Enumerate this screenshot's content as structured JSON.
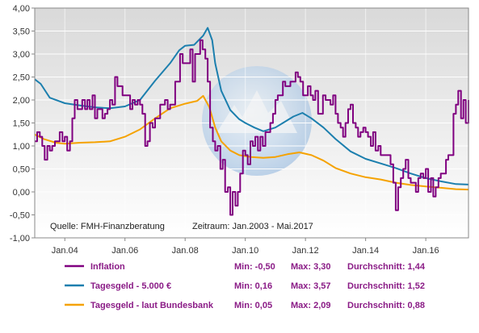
{
  "chart_data": {
    "type": "line",
    "source_note": "Quelle: FMH-Finanzberatung",
    "period_note": "Zeitraum: Jan.2003 - Mai.2017",
    "ylim": [
      -1.0,
      4.0
    ],
    "yticks": [
      "-1,00",
      "-0,50",
      "0,00",
      "0,50",
      "1,00",
      "1,50",
      "2,00",
      "2,50",
      "3,00",
      "3,50",
      "4,00"
    ],
    "xtick_labels": [
      "Jan.04",
      "Jan.06",
      "Jan.08",
      "Jan.10",
      "Jan.12",
      "Jan.14",
      "Jan.16"
    ],
    "xtick_years": [
      2004,
      2006,
      2008,
      2010,
      2012,
      2014,
      2016
    ],
    "x_range": [
      2003.0,
      2017.42
    ],
    "grid": true,
    "legend_position": "bottom",
    "series": [
      {
        "name": "Inflation",
        "color": "#800080",
        "stats": {
          "min": "Min: -0,50",
          "max": "Max: 3,30",
          "avg": "Durchschnitt: 1,44"
        },
        "step": true,
        "points": [
          [
            2003.0,
            1.1
          ],
          [
            2003.08,
            1.3
          ],
          [
            2003.17,
            1.2
          ],
          [
            2003.25,
            1.0
          ],
          [
            2003.33,
            0.7
          ],
          [
            2003.42,
            1.0
          ],
          [
            2003.5,
            0.9
          ],
          [
            2003.58,
            1.0
          ],
          [
            2003.67,
            1.1
          ],
          [
            2003.75,
            1.1
          ],
          [
            2003.83,
            1.3
          ],
          [
            2003.92,
            1.1
          ],
          [
            2004.0,
            1.2
          ],
          [
            2004.08,
            0.9
          ],
          [
            2004.17,
            1.1
          ],
          [
            2004.25,
            1.6
          ],
          [
            2004.33,
            2.0
          ],
          [
            2004.42,
            1.8
          ],
          [
            2004.5,
            1.8
          ],
          [
            2004.58,
            2.0
          ],
          [
            2004.67,
            1.8
          ],
          [
            2004.75,
            2.0
          ],
          [
            2004.83,
            1.8
          ],
          [
            2004.92,
            2.1
          ],
          [
            2005.0,
            1.6
          ],
          [
            2005.08,
            1.8
          ],
          [
            2005.17,
            1.8
          ],
          [
            2005.25,
            1.6
          ],
          [
            2005.33,
            1.7
          ],
          [
            2005.42,
            1.8
          ],
          [
            2005.5,
            2.0
          ],
          [
            2005.58,
            1.9
          ],
          [
            2005.67,
            2.5
          ],
          [
            2005.75,
            2.3
          ],
          [
            2005.83,
            2.3
          ],
          [
            2005.92,
            2.1
          ],
          [
            2006.0,
            2.1
          ],
          [
            2006.08,
            2.1
          ],
          [
            2006.17,
            1.8
          ],
          [
            2006.25,
            2.0
          ],
          [
            2006.33,
            1.9
          ],
          [
            2006.42,
            2.0
          ],
          [
            2006.5,
            1.9
          ],
          [
            2006.58,
            1.7
          ],
          [
            2006.67,
            1.0
          ],
          [
            2006.75,
            1.1
          ],
          [
            2006.83,
            1.5
          ],
          [
            2006.92,
            1.4
          ],
          [
            2007.0,
            1.6
          ],
          [
            2007.08,
            1.6
          ],
          [
            2007.17,
            1.9
          ],
          [
            2007.25,
            1.9
          ],
          [
            2007.33,
            2.0
          ],
          [
            2007.42,
            1.8
          ],
          [
            2007.5,
            1.9
          ],
          [
            2007.58,
            1.9
          ],
          [
            2007.67,
            2.4
          ],
          [
            2007.75,
            2.4
          ],
          [
            2007.83,
            3.0
          ],
          [
            2007.92,
            2.8
          ],
          [
            2008.0,
            2.8
          ],
          [
            2008.08,
            2.8
          ],
          [
            2008.17,
            3.1
          ],
          [
            2008.25,
            2.4
          ],
          [
            2008.33,
            3.0
          ],
          [
            2008.42,
            3.0
          ],
          [
            2008.5,
            3.3
          ],
          [
            2008.58,
            3.1
          ],
          [
            2008.67,
            2.9
          ],
          [
            2008.75,
            2.4
          ],
          [
            2008.83,
            1.4
          ],
          [
            2008.92,
            1.1
          ],
          [
            2009.0,
            0.9
          ],
          [
            2009.08,
            1.0
          ],
          [
            2009.17,
            0.5
          ],
          [
            2009.25,
            0.7
          ],
          [
            2009.33,
            0.0
          ],
          [
            2009.42,
            0.1
          ],
          [
            2009.5,
            -0.5
          ],
          [
            2009.58,
            0.0
          ],
          [
            2009.67,
            -0.3
          ],
          [
            2009.75,
            0.0
          ],
          [
            2009.83,
            0.4
          ],
          [
            2009.92,
            0.9
          ],
          [
            2010.0,
            0.8
          ],
          [
            2010.08,
            0.6
          ],
          [
            2010.17,
            1.1
          ],
          [
            2010.25,
            1.0
          ],
          [
            2010.33,
            1.2
          ],
          [
            2010.42,
            0.9
          ],
          [
            2010.5,
            1.2
          ],
          [
            2010.58,
            1.0
          ],
          [
            2010.67,
            1.3
          ],
          [
            2010.75,
            1.3
          ],
          [
            2010.83,
            1.5
          ],
          [
            2010.92,
            1.7
          ],
          [
            2011.0,
            2.0
          ],
          [
            2011.08,
            2.1
          ],
          [
            2011.17,
            2.1
          ],
          [
            2011.25,
            2.4
          ],
          [
            2011.33,
            2.3
          ],
          [
            2011.42,
            2.3
          ],
          [
            2011.5,
            2.4
          ],
          [
            2011.58,
            2.4
          ],
          [
            2011.67,
            2.6
          ],
          [
            2011.75,
            2.5
          ],
          [
            2011.83,
            2.4
          ],
          [
            2011.92,
            2.1
          ],
          [
            2012.0,
            2.1
          ],
          [
            2012.08,
            2.3
          ],
          [
            2012.17,
            2.1
          ],
          [
            2012.25,
            2.0
          ],
          [
            2012.33,
            2.2
          ],
          [
            2012.42,
            1.7
          ],
          [
            2012.5,
            1.7
          ],
          [
            2012.58,
            2.1
          ],
          [
            2012.67,
            2.0
          ],
          [
            2012.75,
            2.0
          ],
          [
            2012.83,
            1.9
          ],
          [
            2012.92,
            2.1
          ],
          [
            2013.0,
            1.7
          ],
          [
            2013.08,
            1.5
          ],
          [
            2013.17,
            1.4
          ],
          [
            2013.25,
            1.2
          ],
          [
            2013.33,
            1.5
          ],
          [
            2013.42,
            1.8
          ],
          [
            2013.5,
            1.9
          ],
          [
            2013.58,
            1.5
          ],
          [
            2013.67,
            1.4
          ],
          [
            2013.75,
            1.2
          ],
          [
            2013.83,
            1.3
          ],
          [
            2013.92,
            1.4
          ],
          [
            2014.0,
            1.3
          ],
          [
            2014.08,
            1.2
          ],
          [
            2014.17,
            1.0
          ],
          [
            2014.25,
            1.3
          ],
          [
            2014.33,
            0.9
          ],
          [
            2014.42,
            1.0
          ],
          [
            2014.5,
            0.8
          ],
          [
            2014.58,
            0.8
          ],
          [
            2014.67,
            0.8
          ],
          [
            2014.75,
            0.8
          ],
          [
            2014.83,
            0.6
          ],
          [
            2014.92,
            0.2
          ],
          [
            2015.0,
            -0.4
          ],
          [
            2015.08,
            0.1
          ],
          [
            2015.17,
            0.3
          ],
          [
            2015.25,
            0.5
          ],
          [
            2015.33,
            0.7
          ],
          [
            2015.42,
            0.3
          ],
          [
            2015.5,
            0.2
          ],
          [
            2015.58,
            0.2
          ],
          [
            2015.67,
            0.0
          ],
          [
            2015.75,
            0.3
          ],
          [
            2015.83,
            0.4
          ],
          [
            2015.92,
            0.3
          ],
          [
            2016.0,
            0.5
          ],
          [
            2016.08,
            0.0
          ],
          [
            2016.17,
            0.3
          ],
          [
            2016.25,
            -0.1
          ],
          [
            2016.33,
            0.1
          ],
          [
            2016.42,
            0.3
          ],
          [
            2016.5,
            0.4
          ],
          [
            2016.58,
            0.4
          ],
          [
            2016.67,
            0.7
          ],
          [
            2016.75,
            0.8
          ],
          [
            2016.83,
            0.8
          ],
          [
            2016.92,
            1.7
          ],
          [
            2017.0,
            1.9
          ],
          [
            2017.08,
            2.2
          ],
          [
            2017.17,
            1.6
          ],
          [
            2017.25,
            2.0
          ],
          [
            2017.33,
            1.5
          ],
          [
            2017.42,
            2.0
          ]
        ]
      },
      {
        "name": "Tagesgeld - 5.000 €",
        "color": "#1c7fae",
        "stats": {
          "min": "Min: 0,16",
          "max": "Max: 3,57",
          "avg": "Durchschnitt: 1,52"
        },
        "step": false,
        "points": [
          [
            2003.0,
            2.45
          ],
          [
            2003.2,
            2.35
          ],
          [
            2003.5,
            2.05
          ],
          [
            2004.0,
            1.93
          ],
          [
            2004.5,
            1.88
          ],
          [
            2005.0,
            1.84
          ],
          [
            2005.5,
            1.82
          ],
          [
            2006.0,
            1.86
          ],
          [
            2006.5,
            2.0
          ],
          [
            2007.0,
            2.42
          ],
          [
            2007.5,
            2.8
          ],
          [
            2007.8,
            3.08
          ],
          [
            2008.0,
            3.18
          ],
          [
            2008.3,
            3.2
          ],
          [
            2008.6,
            3.4
          ],
          [
            2008.75,
            3.57
          ],
          [
            2008.9,
            3.3
          ],
          [
            2009.0,
            2.8
          ],
          [
            2009.2,
            2.2
          ],
          [
            2009.5,
            1.78
          ],
          [
            2009.8,
            1.58
          ],
          [
            2010.0,
            1.5
          ],
          [
            2010.3,
            1.4
          ],
          [
            2010.6,
            1.32
          ],
          [
            2011.0,
            1.4
          ],
          [
            2011.3,
            1.52
          ],
          [
            2011.6,
            1.64
          ],
          [
            2011.9,
            1.72
          ],
          [
            2012.2,
            1.6
          ],
          [
            2012.6,
            1.4
          ],
          [
            2013.0,
            1.15
          ],
          [
            2013.5,
            0.88
          ],
          [
            2014.0,
            0.72
          ],
          [
            2014.5,
            0.62
          ],
          [
            2015.0,
            0.52
          ],
          [
            2015.5,
            0.4
          ],
          [
            2016.0,
            0.3
          ],
          [
            2016.5,
            0.23
          ],
          [
            2017.0,
            0.17
          ],
          [
            2017.42,
            0.16
          ]
        ]
      },
      {
        "name": "Tagesgeld - laut Bundesbank",
        "color": "#f5a200",
        "stats": {
          "min": "Min: 0,05",
          "max": "Max: 2,09",
          "avg": "Durchschnitt: 0,88"
        },
        "step": false,
        "points": [
          [
            2003.0,
            1.25
          ],
          [
            2003.3,
            1.15
          ],
          [
            2003.7,
            1.07
          ],
          [
            2004.0,
            1.05
          ],
          [
            2004.5,
            1.07
          ],
          [
            2005.0,
            1.08
          ],
          [
            2005.5,
            1.1
          ],
          [
            2006.0,
            1.2
          ],
          [
            2006.5,
            1.36
          ],
          [
            2007.0,
            1.6
          ],
          [
            2007.5,
            1.82
          ],
          [
            2008.0,
            1.92
          ],
          [
            2008.4,
            1.98
          ],
          [
            2008.6,
            2.09
          ],
          [
            2008.8,
            1.85
          ],
          [
            2009.0,
            1.4
          ],
          [
            2009.2,
            1.1
          ],
          [
            2009.5,
            0.9
          ],
          [
            2009.8,
            0.8
          ],
          [
            2010.2,
            0.76
          ],
          [
            2010.6,
            0.74
          ],
          [
            2011.0,
            0.76
          ],
          [
            2011.4,
            0.82
          ],
          [
            2011.8,
            0.86
          ],
          [
            2012.2,
            0.8
          ],
          [
            2012.6,
            0.68
          ],
          [
            2013.0,
            0.52
          ],
          [
            2013.5,
            0.4
          ],
          [
            2014.0,
            0.32
          ],
          [
            2014.5,
            0.27
          ],
          [
            2015.0,
            0.2
          ],
          [
            2015.5,
            0.15
          ],
          [
            2016.0,
            0.12
          ],
          [
            2016.5,
            0.09
          ],
          [
            2017.0,
            0.06
          ],
          [
            2017.42,
            0.05
          ]
        ]
      }
    ]
  }
}
